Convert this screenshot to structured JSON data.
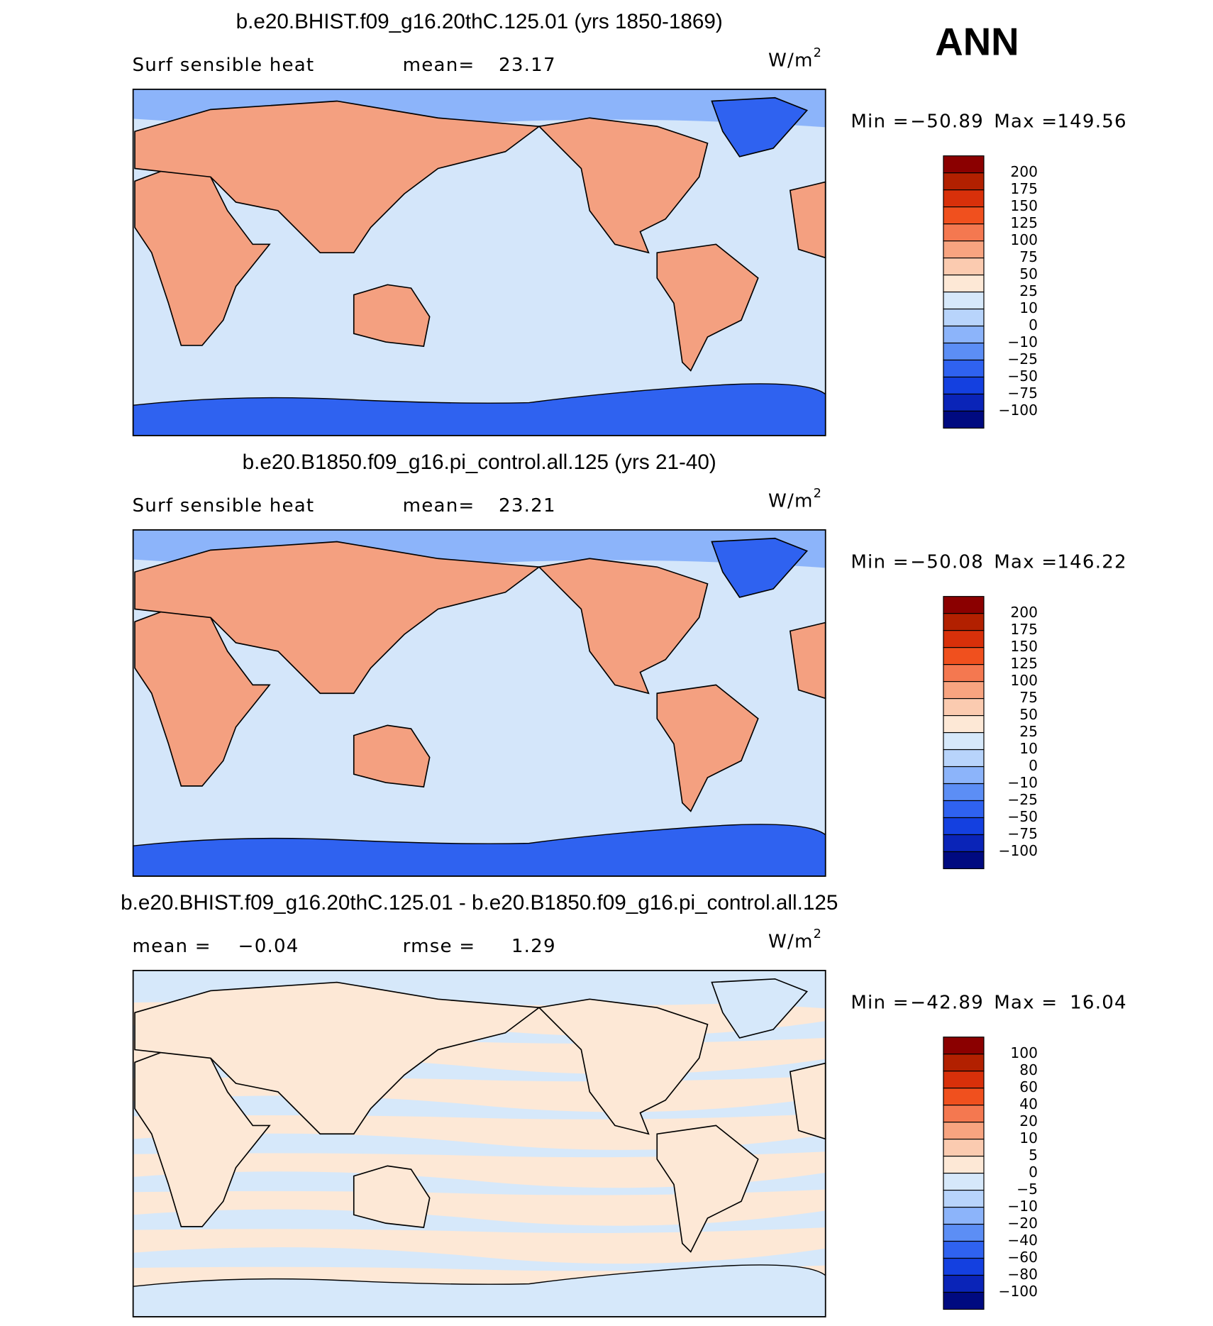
{
  "header": {
    "season": "ANN"
  },
  "panels": [
    {
      "title": "b.e20.BHIST.f09_g16.20thC.125.01 (yrs 1850-1869)",
      "left_label": "Surf sensible heat",
      "stat_label": "mean=",
      "stat_value": "23.17",
      "units": {
        "base": "W/m",
        "sup": "2"
      },
      "min_label": "Min =",
      "min": "−50.89",
      "max_label": "Max =",
      "max": "149.56",
      "colorbar": {
        "labels": [
          "200",
          "175",
          "150",
          "125",
          "100",
          "75",
          "50",
          "25",
          "10",
          "0",
          "−10",
          "−25",
          "−50",
          "−75",
          "−100"
        ],
        "colors": [
          "#8b0000",
          "#b22000",
          "#d8300a",
          "#f0501e",
          "#f47850",
          "#f8a480",
          "#fbcbb0",
          "#fde8d6",
          "#d6e8fa",
          "#b8d4fb",
          "#8cb4fa",
          "#5c8ef5",
          "#2f62f0",
          "#1440e0",
          "#0a24b8",
          "#000a80"
        ]
      },
      "land": "#f4a080",
      "ocean": "#d4e6fa",
      "polar": "#2f62f0",
      "arctic": "#8cb4fa"
    },
    {
      "title": "b.e20.B1850.f09_g16.pi_control.all.125 (yrs 21-40)",
      "left_label": "Surf sensible heat",
      "stat_label": "mean=",
      "stat_value": "23.21",
      "units": {
        "base": "W/m",
        "sup": "2"
      },
      "min_label": "Min =",
      "min": "−50.08",
      "max_label": "Max =",
      "max": "146.22",
      "colorbar": {
        "labels": [
          "200",
          "175",
          "150",
          "125",
          "100",
          "75",
          "50",
          "25",
          "10",
          "0",
          "−10",
          "−25",
          "−50",
          "−75",
          "−100"
        ],
        "colors": [
          "#8b0000",
          "#b22000",
          "#d8300a",
          "#f0501e",
          "#f47850",
          "#f8a480",
          "#fbcbb0",
          "#fde8d6",
          "#d6e8fa",
          "#b8d4fb",
          "#8cb4fa",
          "#5c8ef5",
          "#2f62f0",
          "#1440e0",
          "#0a24b8",
          "#000a80"
        ]
      },
      "land": "#f4a080",
      "ocean": "#d4e6fa",
      "polar": "#2f62f0",
      "arctic": "#8cb4fa"
    },
    {
      "title": "b.e20.BHIST.f09_g16.20thC.125.01 - b.e20.B1850.f09_g16.pi_control.all.125",
      "left_label": "mean =",
      "left_value": "−0.04",
      "stat_label": "rmse =",
      "stat_value": "1.29",
      "units": {
        "base": "W/m",
        "sup": "2"
      },
      "min_label": "Min =",
      "min": "−42.89",
      "max_label": "Max =",
      "max": "16.04",
      "colorbar": {
        "labels": [
          "100",
          "80",
          "60",
          "40",
          "20",
          "10",
          "5",
          "0",
          "−5",
          "−10",
          "−20",
          "−40",
          "−60",
          "−80",
          "−100"
        ],
        "colors": [
          "#8b0000",
          "#b22000",
          "#d8300a",
          "#f0501e",
          "#f47850",
          "#f8a480",
          "#fbcbb0",
          "#fde8d6",
          "#d6e8fa",
          "#b8d4fb",
          "#8cb4fa",
          "#5c8ef5",
          "#2f62f0",
          "#1440e0",
          "#0a24b8",
          "#000a80"
        ]
      },
      "land": "#fde8d6",
      "ocean": "#fde8d6",
      "polar": "#d6e8fa",
      "arctic": "#d6e8fa"
    }
  ]
}
